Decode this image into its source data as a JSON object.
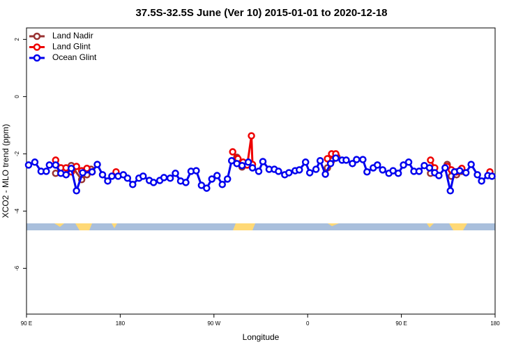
{
  "chart_data": {
    "type": "line",
    "title": "37.5S-32.5S June (Ver 10)   2015-01-01 to 2020-12-18",
    "x_label": "Longitude",
    "y_label": "XCO2 - MLO trend (ppm)",
    "xlim": [
      90,
      540
    ],
    "xticks": [
      {
        "value": 90,
        "label": "90 E"
      },
      180,
      {
        "value": 270,
        "label": "90 W"
      },
      {
        "value": 360,
        "label": "0"
      },
      {
        "value": 450,
        "label": "90 E"
      },
      {
        "value": 540,
        "label": "180"
      }
    ],
    "ylim": [
      -7.6,
      2.4
    ],
    "yticks": [
      2,
      0,
      -2,
      -4,
      -6
    ],
    "legend": "top-left",
    "series": [
      {
        "name": "Land Nadir",
        "color": "#993333",
        "x": [
          118,
          123,
          133,
          143,
          148,
          152,
          null,
          292,
          297,
          302,
          null,
          379,
          383,
          388,
          null,
          478,
          null,
          494,
          498,
          503,
          508
        ],
        "values": [
          -2.68,
          -2.49,
          -2.41,
          -2.9,
          -2.73,
          -2.54,
          null,
          -2.12,
          -2.46,
          -2.32,
          null,
          -2.49,
          -2.24,
          -2.1,
          null,
          -2.68,
          null,
          -2.37,
          -2.78,
          -2.73,
          -2.61
        ]
      },
      {
        "name": "Land Glint",
        "color": "#ee0000",
        "x": [
          118,
          123,
          128,
          133,
          138,
          143,
          148,
          153,
          null,
          176,
          null,
          288,
          293,
          298,
          302,
          306,
          307,
          null,
          379,
          383,
          387,
          null,
          478,
          482,
          null,
          494,
          498,
          503,
          508,
          null,
          535
        ],
        "values": [
          -2.22,
          -2.49,
          -2.49,
          -2.63,
          -2.44,
          -2.59,
          -2.51,
          -2.63,
          null,
          -2.63,
          null,
          -1.93,
          -2.17,
          -2.29,
          -2.39,
          -1.37,
          -2.37,
          null,
          -2.17,
          -2.0,
          -2.0,
          null,
          -2.22,
          -2.49,
          null,
          -2.44,
          -2.56,
          -2.63,
          -2.51,
          null,
          -2.63
        ]
      },
      {
        "name": "Ocean Glint",
        "color": "#0000ee",
        "x": [
          92,
          98,
          104,
          109,
          112,
          118,
          123,
          128,
          133,
          138,
          144,
          153,
          158,
          163,
          168,
          172,
          178,
          183,
          187,
          192,
          198,
          202,
          208,
          212,
          218,
          222,
          228,
          233,
          238,
          243,
          248,
          253,
          258,
          263,
          268,
          273,
          278,
          283,
          287,
          292,
          297,
          303,
          307,
          313,
          317,
          323,
          328,
          332,
          338,
          342,
          348,
          352,
          358,
          362,
          368,
          372,
          377,
          382,
          387,
          393,
          397,
          403,
          407,
          413,
          417,
          423,
          427,
          432,
          438,
          442,
          447,
          452,
          457,
          462,
          467,
          472,
          477,
          482,
          486,
          492,
          497,
          501,
          506,
          512,
          517,
          523,
          527,
          533,
          537
        ],
        "values": [
          -2.39,
          -2.29,
          -2.61,
          -2.61,
          -2.39,
          -2.39,
          -2.68,
          -2.73,
          -2.51,
          -3.29,
          -2.66,
          -2.63,
          -2.37,
          -2.73,
          -2.95,
          -2.78,
          -2.78,
          -2.73,
          -2.85,
          -3.07,
          -2.85,
          -2.78,
          -2.93,
          -3.0,
          -2.93,
          -2.83,
          -2.85,
          -2.68,
          -2.95,
          -3.0,
          -2.61,
          -2.59,
          -3.1,
          -3.2,
          -2.88,
          -2.76,
          -3.07,
          -2.88,
          -2.24,
          -2.34,
          -2.41,
          -2.29,
          -2.49,
          -2.61,
          -2.27,
          -2.54,
          -2.54,
          -2.61,
          -2.73,
          -2.66,
          -2.59,
          -2.56,
          -2.29,
          -2.66,
          -2.54,
          -2.24,
          -2.71,
          -2.34,
          -2.15,
          -2.22,
          -2.22,
          -2.34,
          -2.2,
          -2.2,
          -2.63,
          -2.49,
          -2.39,
          -2.56,
          -2.68,
          -2.59,
          -2.68,
          -2.39,
          -2.29,
          -2.61,
          -2.61,
          -2.41,
          -2.49,
          -2.66,
          -2.76,
          -2.49,
          -3.29,
          -2.63,
          -2.59,
          -2.66,
          -2.37,
          -2.73,
          -2.95,
          -2.76,
          -2.78
        ]
      }
    ]
  }
}
